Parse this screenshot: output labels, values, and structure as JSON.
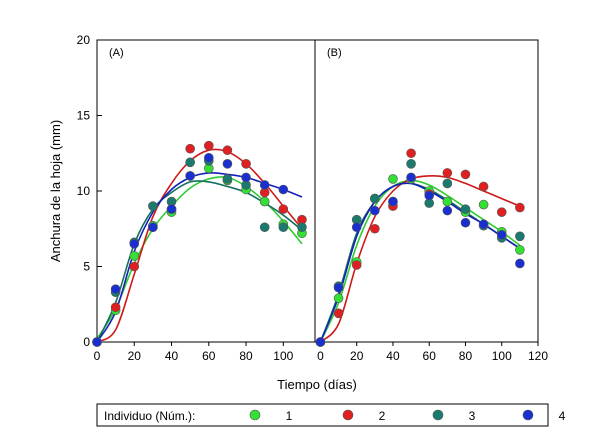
{
  "chart_data": {
    "type": "scatter",
    "ylabel": "Anchura de la hoja (mm)",
    "xlabel": "Tiempo (días)",
    "ylim": [
      0,
      20
    ],
    "y_ticks": [
      "0",
      "5",
      "10",
      "15",
      "20"
    ],
    "legend_title": "Individuo (Núm.):",
    "legend_position": "bottom",
    "grid": false,
    "series_styles": [
      {
        "name": "1",
        "color": "#33e033",
        "line_color": "#2ecc2e"
      },
      {
        "name": "2",
        "color": "#e02020",
        "line_color": "#d01818"
      },
      {
        "name": "3",
        "color": "#1a7a6e",
        "line_color": "#167060"
      },
      {
        "name": "4",
        "color": "#1a2fd0",
        "line_color": "#1422b8"
      }
    ],
    "panels": [
      {
        "label": "(A)",
        "xlim": [
          0,
          117
        ],
        "x_ticks": [
          "0",
          "20",
          "40",
          "60",
          "80",
          "100"
        ],
        "x_tick_values": [
          0,
          20,
          40,
          60,
          80,
          100
        ],
        "series": [
          {
            "name": "1",
            "points": [
              [
                0,
                0
              ],
              [
                10,
                2.1
              ],
              [
                20,
                5.7
              ],
              [
                30,
                7.7
              ],
              [
                40,
                8.6
              ],
              [
                50,
                11.0
              ],
              [
                60,
                11.5
              ],
              [
                70,
                10.7
              ],
              [
                80,
                10.1
              ],
              [
                90,
                9.3
              ],
              [
                100,
                7.8
              ],
              [
                110,
                7.2
              ]
            ],
            "curve": [
              [
                0,
                0.2
              ],
              [
                10,
                2.2
              ],
              [
                20,
                5.2
              ],
              [
                30,
                7.5
              ],
              [
                40,
                9.0
              ],
              [
                50,
                10.2
              ],
              [
                60,
                10.8
              ],
              [
                70,
                10.9
              ],
              [
                80,
                10.3
              ],
              [
                90,
                9.3
              ],
              [
                100,
                8.0
              ],
              [
                110,
                6.5
              ]
            ]
          },
          {
            "name": "2",
            "points": [
              [
                0,
                0
              ],
              [
                10,
                2.3
              ],
              [
                20,
                5.0
              ],
              [
                30,
                7.6
              ],
              [
                40,
                8.8
              ],
              [
                50,
                12.8
              ],
              [
                60,
                13.0
              ],
              [
                70,
                12.7
              ],
              [
                80,
                11.8
              ],
              [
                90,
                9.9
              ],
              [
                100,
                8.8
              ],
              [
                110,
                8.1
              ]
            ],
            "curve": [
              [
                0,
                0
              ],
              [
                10,
                0.8
              ],
              [
                20,
                4.5
              ],
              [
                30,
                8.3
              ],
              [
                40,
                10.5
              ],
              [
                50,
                12.0
              ],
              [
                60,
                12.7
              ],
              [
                70,
                12.6
              ],
              [
                80,
                11.8
              ],
              [
                90,
                10.5
              ],
              [
                100,
                9.0
              ],
              [
                110,
                7.5
              ]
            ]
          },
          {
            "name": "3",
            "points": [
              [
                0,
                0
              ],
              [
                10,
                3.3
              ],
              [
                20,
                6.6
              ],
              [
                30,
                9.0
              ],
              [
                40,
                9.3
              ],
              [
                50,
                11.9
              ],
              [
                60,
                12.0
              ],
              [
                70,
                10.8
              ],
              [
                80,
                10.4
              ],
              [
                90,
                7.6
              ],
              [
                100,
                7.6
              ],
              [
                110,
                7.6
              ]
            ],
            "curve": [
              [
                0,
                0
              ],
              [
                10,
                2.6
              ],
              [
                20,
                6.5
              ],
              [
                30,
                8.8
              ],
              [
                40,
                9.9
              ],
              [
                50,
                10.6
              ],
              [
                60,
                10.6
              ],
              [
                70,
                10.3
              ],
              [
                80,
                9.9
              ],
              [
                90,
                9.2
              ],
              [
                100,
                8.4
              ],
              [
                110,
                7.4
              ]
            ]
          },
          {
            "name": "4",
            "points": [
              [
                0,
                0
              ],
              [
                10,
                3.5
              ],
              [
                20,
                6.5
              ],
              [
                30,
                7.6
              ],
              [
                40,
                8.8
              ],
              [
                50,
                11.0
              ],
              [
                60,
                12.2
              ],
              [
                70,
                11.8
              ],
              [
                80,
                10.9
              ],
              [
                90,
                10.4
              ],
              [
                100,
                10.1
              ]
            ],
            "curve": [
              [
                0,
                0
              ],
              [
                10,
                2.0
              ],
              [
                20,
                6.0
              ],
              [
                30,
                8.6
              ],
              [
                40,
                10.1
              ],
              [
                50,
                10.9
              ],
              [
                60,
                11.2
              ],
              [
                70,
                11.1
              ],
              [
                80,
                10.9
              ],
              [
                90,
                10.5
              ],
              [
                100,
                10.1
              ],
              [
                110,
                9.6
              ]
            ]
          }
        ]
      },
      {
        "label": "(B)",
        "xlim": [
          -3,
          120
        ],
        "x_ticks": [
          "0",
          "20",
          "40",
          "60",
          "80",
          "100",
          "120"
        ],
        "x_tick_values": [
          0,
          20,
          40,
          60,
          80,
          100,
          120
        ],
        "series": [
          {
            "name": "1",
            "points": [
              [
                0,
                0
              ],
              [
                10,
                2.9
              ],
              [
                20,
                5.3
              ],
              [
                30,
                9.5
              ],
              [
                40,
                10.8
              ],
              [
                50,
                10.8
              ],
              [
                60,
                10.0
              ],
              [
                70,
                9.3
              ],
              [
                80,
                8.6
              ],
              [
                90,
                9.1
              ],
              [
                100,
                7.3
              ],
              [
                110,
                6.1
              ]
            ],
            "curve": [
              [
                0,
                0
              ],
              [
                10,
                2.6
              ],
              [
                20,
                6.4
              ],
              [
                30,
                9.0
              ],
              [
                40,
                10.3
              ],
              [
                50,
                10.7
              ],
              [
                60,
                10.4
              ],
              [
                70,
                9.7
              ],
              [
                80,
                8.9
              ],
              [
                90,
                8.1
              ],
              [
                100,
                7.3
              ],
              [
                110,
                6.4
              ]
            ]
          },
          {
            "name": "2",
            "points": [
              [
                0,
                0
              ],
              [
                10,
                1.9
              ],
              [
                20,
                5.1
              ],
              [
                30,
                7.5
              ],
              [
                40,
                9.0
              ],
              [
                50,
                12.5
              ],
              [
                60,
                9.8
              ],
              [
                70,
                11.2
              ],
              [
                80,
                11.1
              ],
              [
                90,
                10.3
              ],
              [
                100,
                8.6
              ],
              [
                110,
                8.9
              ]
            ],
            "curve": [
              [
                0,
                0
              ],
              [
                10,
                1.2
              ],
              [
                20,
                5.2
              ],
              [
                30,
                8.3
              ],
              [
                40,
                10.0
              ],
              [
                50,
                10.8
              ],
              [
                60,
                11.0
              ],
              [
                70,
                10.9
              ],
              [
                80,
                10.5
              ],
              [
                90,
                10.0
              ],
              [
                100,
                9.5
              ],
              [
                110,
                9.0
              ]
            ]
          },
          {
            "name": "3",
            "points": [
              [
                0,
                0
              ],
              [
                10,
                3.7
              ],
              [
                20,
                8.1
              ],
              [
                30,
                9.5
              ],
              [
                40,
                9.3
              ],
              [
                50,
                11.8
              ],
              [
                60,
                9.2
              ],
              [
                70,
                10.5
              ],
              [
                80,
                8.8
              ],
              [
                90,
                7.7
              ],
              [
                100,
                6.9
              ],
              [
                110,
                7.0
              ]
            ],
            "curve": [
              [
                0,
                0
              ],
              [
                10,
                3.2
              ],
              [
                20,
                7.2
              ],
              [
                30,
                9.3
              ],
              [
                40,
                10.3
              ],
              [
                50,
                10.5
              ],
              [
                60,
                10.1
              ],
              [
                70,
                9.4
              ],
              [
                80,
                8.6
              ],
              [
                90,
                7.8
              ],
              [
                100,
                7.0
              ],
              [
                110,
                6.2
              ]
            ]
          },
          {
            "name": "4",
            "points": [
              [
                0,
                0
              ],
              [
                10,
                3.6
              ],
              [
                20,
                7.6
              ],
              [
                30,
                8.7
              ],
              [
                40,
                9.3
              ],
              [
                50,
                10.9
              ],
              [
                60,
                9.7
              ],
              [
                70,
                8.7
              ],
              [
                80,
                7.9
              ],
              [
                90,
                7.8
              ],
              [
                100,
                7.1
              ],
              [
                110,
                5.2
              ]
            ],
            "curve": [
              [
                0,
                0
              ],
              [
                10,
                3.0
              ],
              [
                20,
                7.0
              ],
              [
                30,
                9.3
              ],
              [
                40,
                10.3
              ],
              [
                50,
                10.5
              ],
              [
                60,
                10.0
              ],
              [
                70,
                9.3
              ],
              [
                80,
                8.5
              ],
              [
                90,
                7.8
              ],
              [
                100,
                7.0
              ],
              [
                110,
                6.2
              ]
            ]
          }
        ]
      }
    ]
  }
}
